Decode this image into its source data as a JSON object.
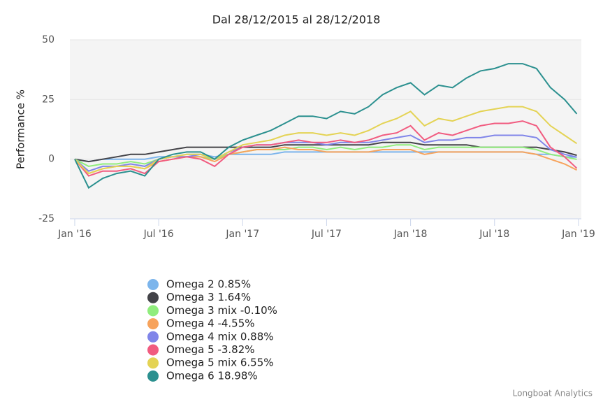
{
  "chart_data": {
    "type": "line",
    "title": "Dal 28/12/2015 al 28/12/2018",
    "y_label": "Performance %",
    "credits": "Longboat Analytics",
    "x": [
      2016,
      2016.083,
      2016.167,
      2016.25,
      2016.333,
      2016.417,
      2016.5,
      2016.583,
      2016.667,
      2016.75,
      2016.833,
      2016.917,
      2017,
      2017.083,
      2017.167,
      2017.25,
      2017.333,
      2017.417,
      2017.5,
      2017.583,
      2017.667,
      2017.75,
      2017.833,
      2017.917,
      2018,
      2018.083,
      2018.167,
      2018.25,
      2018.333,
      2018.417,
      2018.5,
      2018.583,
      2018.667,
      2018.75,
      2018.833,
      2018.917,
      2018.99
    ],
    "xlim": [
      2015.971,
      2019.017
    ],
    "xticks": [
      {
        "value": 2016,
        "label": "Jan '16"
      },
      {
        "value": 2016.5,
        "label": "Jul '16"
      },
      {
        "value": 2017,
        "label": "Jan '17"
      },
      {
        "value": 2017.5,
        "label": "Jul '17"
      },
      {
        "value": 2018,
        "label": "Jan '18"
      },
      {
        "value": 2018.5,
        "label": "Jul '18"
      },
      {
        "value": 2019,
        "label": "Jan '19"
      }
    ],
    "ylim": [
      -25,
      50
    ],
    "yticks": [
      -25,
      0,
      25,
      50
    ],
    "grid": true,
    "series": [
      {
        "name": "Omega 2 0.85%",
        "color": "#7cb5ec",
        "values": [
          0,
          -1,
          0,
          0,
          0,
          0,
          1,
          1,
          2,
          2,
          1,
          2,
          2,
          2,
          2,
          3,
          3,
          3,
          3,
          3,
          3,
          3,
          3,
          3,
          3,
          3,
          3,
          3,
          3,
          3,
          3,
          3,
          3,
          2,
          2,
          1,
          0.85
        ]
      },
      {
        "name": "Omega 3 1.64%",
        "color": "#434348",
        "values": [
          0,
          -1,
          0,
          1,
          2,
          2,
          3,
          4,
          5,
          5,
          5,
          5,
          5,
          5,
          5,
          6,
          6,
          6,
          6,
          6,
          6,
          6,
          7,
          7,
          7,
          6,
          6,
          6,
          6,
          5,
          5,
          5,
          5,
          5,
          4,
          3,
          1.64
        ]
      },
      {
        "name": "Omega 3 mix -0.10%",
        "color": "#90ed7d",
        "values": [
          0,
          -3,
          -2,
          -2,
          -1,
          -2,
          0,
          1,
          1,
          1,
          0,
          2,
          3,
          4,
          4,
          4,
          5,
          5,
          4,
          5,
          4,
          5,
          5,
          6,
          6,
          4,
          5,
          5,
          5,
          5,
          5,
          5,
          5,
          4,
          2,
          1,
          -0.1
        ]
      },
      {
        "name": "Omega 4 -4.55%",
        "color": "#f7a35c",
        "values": [
          0,
          -6,
          -4,
          -3,
          -3,
          -4,
          -1,
          0,
          1,
          1,
          -1,
          2,
          3,
          4,
          4,
          5,
          4,
          4,
          3,
          3,
          3,
          3,
          4,
          4,
          4,
          2,
          3,
          3,
          3,
          3,
          3,
          3,
          3,
          2,
          0,
          -2,
          -4.55
        ]
      },
      {
        "name": "Omega 4 mix 0.88%",
        "color": "#8085e9",
        "values": [
          0,
          -5,
          -3,
          -3,
          -2,
          -3,
          0,
          1,
          1,
          2,
          0,
          3,
          5,
          6,
          6,
          7,
          7,
          7,
          6,
          7,
          7,
          7,
          8,
          9,
          10,
          7,
          8,
          8,
          9,
          9,
          10,
          10,
          10,
          9,
          4,
          2,
          0.88
        ]
      },
      {
        "name": "Omega 5 -3.82%",
        "color": "#f15c80",
        "values": [
          0,
          -7,
          -5,
          -5,
          -4,
          -6,
          -1,
          0,
          1,
          0,
          -3,
          2,
          5,
          6,
          6,
          7,
          8,
          7,
          7,
          8,
          7,
          8,
          10,
          11,
          14,
          8,
          11,
          10,
          12,
          14,
          15,
          15,
          16,
          14,
          5,
          1,
          -3.82
        ]
      },
      {
        "name": "Omega 5 mix 6.55%",
        "color": "#e4d354",
        "values": [
          0,
          -6,
          -4,
          -3,
          -3,
          -4,
          0,
          1,
          2,
          2,
          0,
          3,
          6,
          7,
          8,
          10,
          11,
          11,
          10,
          11,
          10,
          12,
          15,
          17,
          20,
          14,
          17,
          16,
          18,
          20,
          21,
          22,
          22,
          20,
          14,
          10,
          6.55
        ]
      },
      {
        "name": "Omega 6 18.98%",
        "color": "#2b908f",
        "values": [
          0,
          -12,
          -8,
          -6,
          -5,
          -7,
          0,
          2,
          3,
          3,
          0,
          5,
          8,
          10,
          12,
          15,
          18,
          18,
          17,
          20,
          19,
          22,
          27,
          30,
          32,
          27,
          31,
          30,
          34,
          37,
          38,
          40,
          40,
          38,
          30,
          25,
          18.98
        ]
      }
    ]
  }
}
